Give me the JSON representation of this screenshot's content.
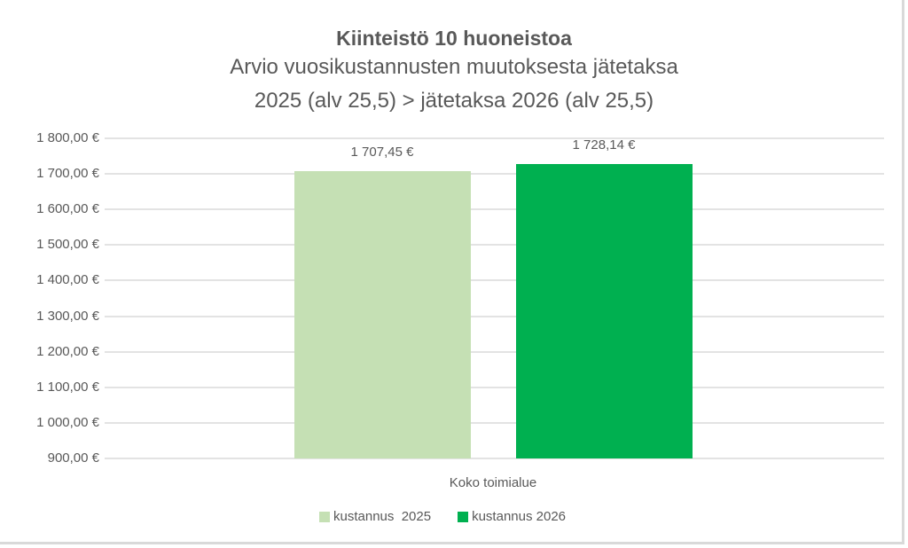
{
  "chart_data": {
    "type": "bar",
    "title": "Kiinteistö 10 huoneistoa",
    "subtitle_line1": "Arvio vuosikustannusten muutoksesta jätetaksa",
    "subtitle_line2": "2025 (alv 25,5) > jätetaksa 2026 (alv 25,5)",
    "categories": [
      "Koko toimialue"
    ],
    "series": [
      {
        "name": "kustannus  2025",
        "values": [
          1707.45
        ],
        "label": "1 707,45 €",
        "color": "#c5e0b4"
      },
      {
        "name": "kustannus 2026",
        "values": [
          1728.14
        ],
        "label": "1 728,14 €",
        "color": "#00b050"
      }
    ],
    "xlabel": "",
    "ylabel": "",
    "ylim": [
      900,
      1800
    ],
    "yticks": [
      "1 800,00 €",
      "1 700,00 €",
      "1 600,00 €",
      "1 500,00 €",
      "1 400,00 €",
      "1 300,00 €",
      "1 200,00 €",
      "1 100,00 €",
      "1 000,00 €",
      "900,00 €"
    ],
    "grid": true,
    "legend_position": "bottom"
  }
}
